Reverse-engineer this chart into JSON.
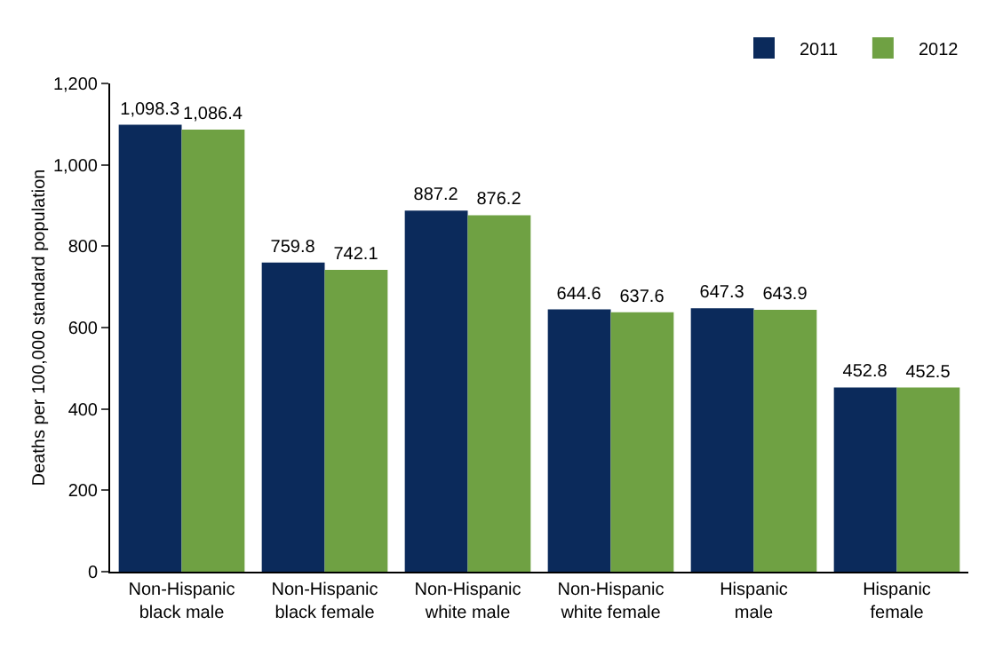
{
  "chart_data": {
    "type": "bar",
    "ylabel": "Deaths per 100,000 standard population",
    "categories": [
      "Non-Hispanic\nblack male",
      "Non-Hispanic\nblack female",
      "Non-Hispanic\nwhite male",
      "Non-Hispanic\nwhite female",
      "Hispanic\nmale",
      "Hispanic\nfemale"
    ],
    "series": [
      {
        "name": "2011",
        "color": "#0b2a5b",
        "values": [
          1098.3,
          759.8,
          887.2,
          644.6,
          647.3,
          452.8
        ],
        "value_labels": [
          "1,098.3",
          "759.8",
          "887.2",
          "644.6",
          "647.3",
          "452.8"
        ]
      },
      {
        "name": "2012",
        "color": "#6fa143",
        "values": [
          1086.4,
          742.1,
          876.2,
          637.6,
          643.9,
          452.5
        ],
        "value_labels": [
          "1,086.4",
          "742.1",
          "876.2",
          "637.6",
          "643.9",
          "452.5"
        ]
      }
    ],
    "ylim": [
      0,
      1200
    ],
    "yticks": [
      0,
      200,
      400,
      600,
      800,
      {
        "value": 1000,
        "label": "1,000"
      },
      {
        "value": 1200,
        "label": "1,200"
      }
    ],
    "grid": false,
    "legend": "top right"
  }
}
